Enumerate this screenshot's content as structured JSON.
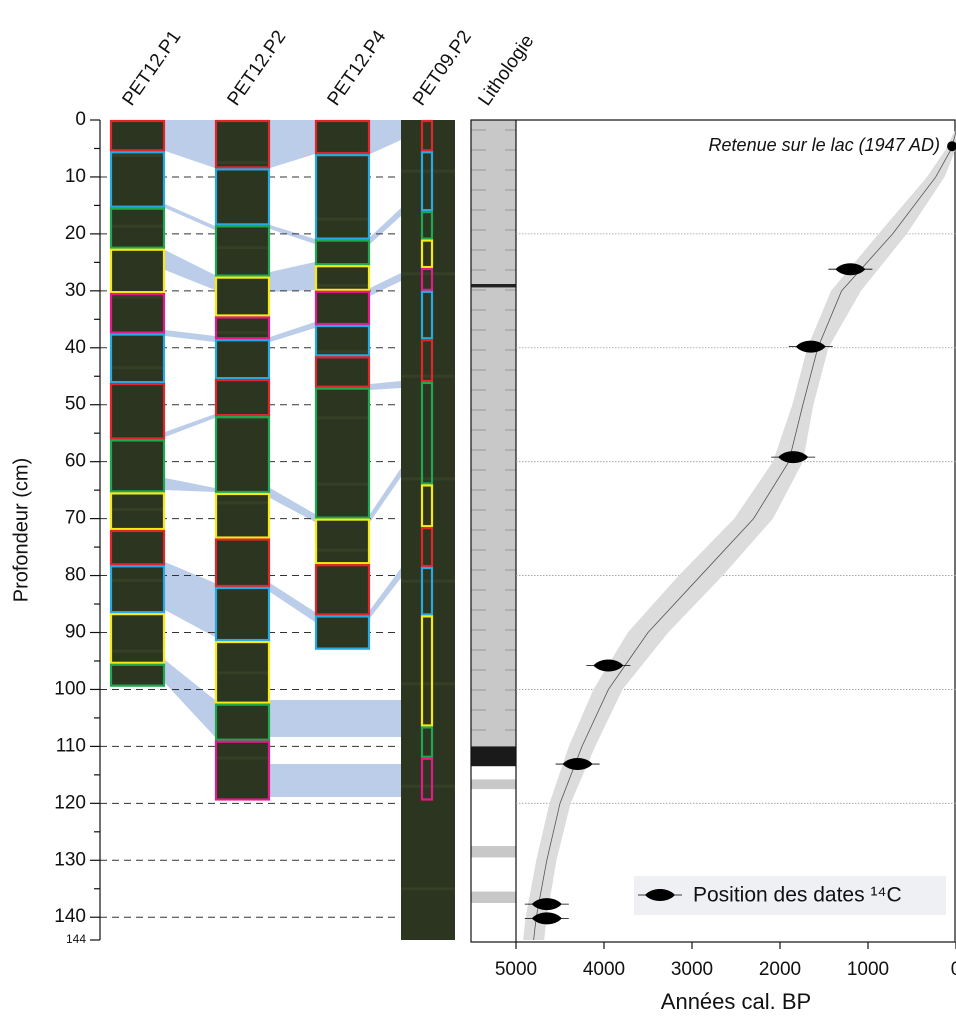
{
  "chart_data": [
    {
      "type": "core-log",
      "y_label": "Profondeur (cm)",
      "ylim": [
        0,
        144
      ],
      "yticks": [
        0,
        10,
        20,
        30,
        40,
        50,
        60,
        70,
        80,
        90,
        100,
        110,
        120,
        130,
        140,
        144
      ],
      "grid": true,
      "photo_color": "#2c3520",
      "columns": [
        {
          "name": "PET12.P1",
          "sections": [
            {
              "top": 0,
              "bottom": 5.5,
              "color": "#e0262b"
            },
            {
              "top": 5.5,
              "bottom": 15.4,
              "color": "#27a9e1"
            },
            {
              "top": 15.4,
              "bottom": 22.6,
              "color": "#1fa84f"
            },
            {
              "top": 22.6,
              "bottom": 30.4,
              "color": "#f5ea14"
            },
            {
              "top": 30.4,
              "bottom": 37.5,
              "color": "#e6198a"
            },
            {
              "top": 37.5,
              "bottom": 46.2,
              "color": "#27a9e1"
            },
            {
              "top": 46.2,
              "bottom": 56.1,
              "color": "#e0262b"
            },
            {
              "top": 56.1,
              "bottom": 65.4,
              "color": "#1fa84f"
            },
            {
              "top": 65.4,
              "bottom": 72,
              "color": "#f5ea14"
            },
            {
              "top": 72,
              "bottom": 78.2,
              "color": "#e0262b"
            },
            {
              "top": 78.2,
              "bottom": 86.6,
              "color": "#27a9e1"
            },
            {
              "top": 86.6,
              "bottom": 95.5,
              "color": "#f5ea14"
            },
            {
              "top": 95.5,
              "bottom": 99.5,
              "color": "#1fa84f"
            }
          ]
        },
        {
          "name": "PET12.P2",
          "sections": [
            {
              "top": 0,
              "bottom": 8.5,
              "color": "#e0262b"
            },
            {
              "top": 8.5,
              "bottom": 18.5,
              "color": "#27a9e1"
            },
            {
              "top": 18.5,
              "bottom": 27.5,
              "color": "#1fa84f"
            },
            {
              "top": 27.5,
              "bottom": 34.5,
              "color": "#f5ea14"
            },
            {
              "top": 34.5,
              "bottom": 38.5,
              "color": "#e6198a"
            },
            {
              "top": 38.5,
              "bottom": 45.5,
              "color": "#27a9e1"
            },
            {
              "top": 45.5,
              "bottom": 52,
              "color": "#e0262b"
            },
            {
              "top": 52,
              "bottom": 65.5,
              "color": "#1fa84f"
            },
            {
              "top": 65.5,
              "bottom": 73.5,
              "color": "#f5ea14"
            },
            {
              "top": 73.5,
              "bottom": 82,
              "color": "#e0262b"
            },
            {
              "top": 82,
              "bottom": 91.5,
              "color": "#27a9e1"
            },
            {
              "top": 91.5,
              "bottom": 102.5,
              "color": "#f5ea14"
            },
            {
              "top": 102.5,
              "bottom": 109,
              "color": "#1fa84f"
            },
            {
              "top": 109,
              "bottom": 119.5,
              "color": "#e6198a"
            }
          ]
        },
        {
          "name": "PET12.P4",
          "sections": [
            {
              "top": 0,
              "bottom": 6,
              "color": "#e0262b"
            },
            {
              "top": 6,
              "bottom": 21,
              "color": "#27a9e1"
            },
            {
              "top": 21,
              "bottom": 25.5,
              "color": "#1fa84f"
            },
            {
              "top": 25.5,
              "bottom": 30,
              "color": "#f5ea14"
            },
            {
              "top": 30,
              "bottom": 36,
              "color": "#e6198a"
            },
            {
              "top": 36,
              "bottom": 41.5,
              "color": "#27a9e1"
            },
            {
              "top": 41.5,
              "bottom": 47,
              "color": "#e0262b"
            },
            {
              "top": 47,
              "bottom": 70,
              "color": "#1fa84f"
            },
            {
              "top": 70,
              "bottom": 78,
              "color": "#f5ea14"
            },
            {
              "top": 78,
              "bottom": 87,
              "color": "#e0262b"
            },
            {
              "top": 87,
              "bottom": 93,
              "color": "#27a9e1"
            }
          ]
        },
        {
          "name": "PET09.P2",
          "length": 144,
          "sections": [
            {
              "top": 0,
              "bottom": 5.5,
              "color": "#e0262b"
            },
            {
              "top": 5.5,
              "bottom": 16,
              "color": "#27a9e1"
            },
            {
              "top": 16,
              "bottom": 21,
              "color": "#1fa84f"
            },
            {
              "top": 21,
              "bottom": 26,
              "color": "#f5ea14"
            },
            {
              "top": 26,
              "bottom": 30,
              "color": "#e6198a"
            },
            {
              "top": 30,
              "bottom": 38.5,
              "color": "#27a9e1"
            },
            {
              "top": 38.5,
              "bottom": 46,
              "color": "#e0262b"
            },
            {
              "top": 46,
              "bottom": 64,
              "color": "#1fa84f"
            },
            {
              "top": 64,
              "bottom": 71.5,
              "color": "#f5ea14"
            },
            {
              "top": 71.5,
              "bottom": 78.5,
              "color": "#e0262b"
            },
            {
              "top": 78.5,
              "bottom": 87,
              "color": "#27a9e1"
            },
            {
              "top": 87,
              "bottom": 106.5,
              "color": "#f5ea14"
            },
            {
              "top": 106.5,
              "bottom": 112,
              "color": "#1fa84f"
            },
            {
              "top": 112,
              "bottom": 119.5,
              "color": "#e6198a"
            }
          ]
        },
        {
          "name": "Lithologie",
          "layers": [
            {
              "top": 0,
              "bottom": 110,
              "color": "#c8c8c8"
            },
            {
              "top": 28.8,
              "bottom": 29.4,
              "color": "#222222"
            },
            {
              "top": 110,
              "bottom": 113.5,
              "color": "#1a1a1a"
            },
            {
              "top": 113.5,
              "bottom": 144,
              "color": "#ffffff"
            },
            {
              "top": 115.8,
              "bottom": 117.5,
              "color": "#c8c8c8"
            },
            {
              "top": 127.5,
              "bottom": 129.5,
              "color": "#c8c8c8"
            },
            {
              "top": 135.5,
              "bottom": 137.5,
              "color": "#c8c8c8"
            }
          ]
        }
      ]
    },
    {
      "type": "scatter",
      "x_label": "Années cal. BP",
      "annotation": "Retenue sur le lac (1947 AD)",
      "xlim": [
        5000,
        0
      ],
      "xticks": [
        5000,
        4000,
        3000,
        2000,
        1000,
        0
      ],
      "ylim": [
        0,
        144
      ],
      "grid_depths": [
        20,
        40,
        60,
        80,
        100,
        120
      ],
      "series": [
        {
          "name": "Position des dates ¹⁴C",
          "color": "#000000",
          "x": [
            1200,
            1650,
            1850,
            3950,
            4300,
            4650,
            4650
          ],
          "values": [
            26.2,
            39.8,
            59.2,
            95.8,
            113.1,
            137.7,
            140.2
          ]
        }
      ],
      "annotation_point": {
        "x": 45,
        "value": 4.6
      },
      "model": {
        "color": "#dcdcdc",
        "depth": [
          2,
          5,
          10,
          20,
          30,
          40,
          50,
          60,
          70,
          80,
          90,
          100,
          110,
          120,
          130,
          140,
          144
        ],
        "median": [
          0,
          50,
          230,
          720,
          1300,
          1570,
          1740,
          1900,
          2300,
          2900,
          3500,
          3950,
          4250,
          4500,
          4650,
          4770,
          4800
        ],
        "lower": [
          -20,
          0,
          130,
          560,
          1080,
          1450,
          1620,
          1740,
          2080,
          2650,
          3270,
          3790,
          4100,
          4380,
          4540,
          4650,
          4680
        ],
        "upper": [
          20,
          110,
          330,
          880,
          1420,
          1690,
          1860,
          2080,
          2520,
          3150,
          3730,
          4120,
          4400,
          4620,
          4770,
          4890,
          4920
        ]
      }
    }
  ]
}
